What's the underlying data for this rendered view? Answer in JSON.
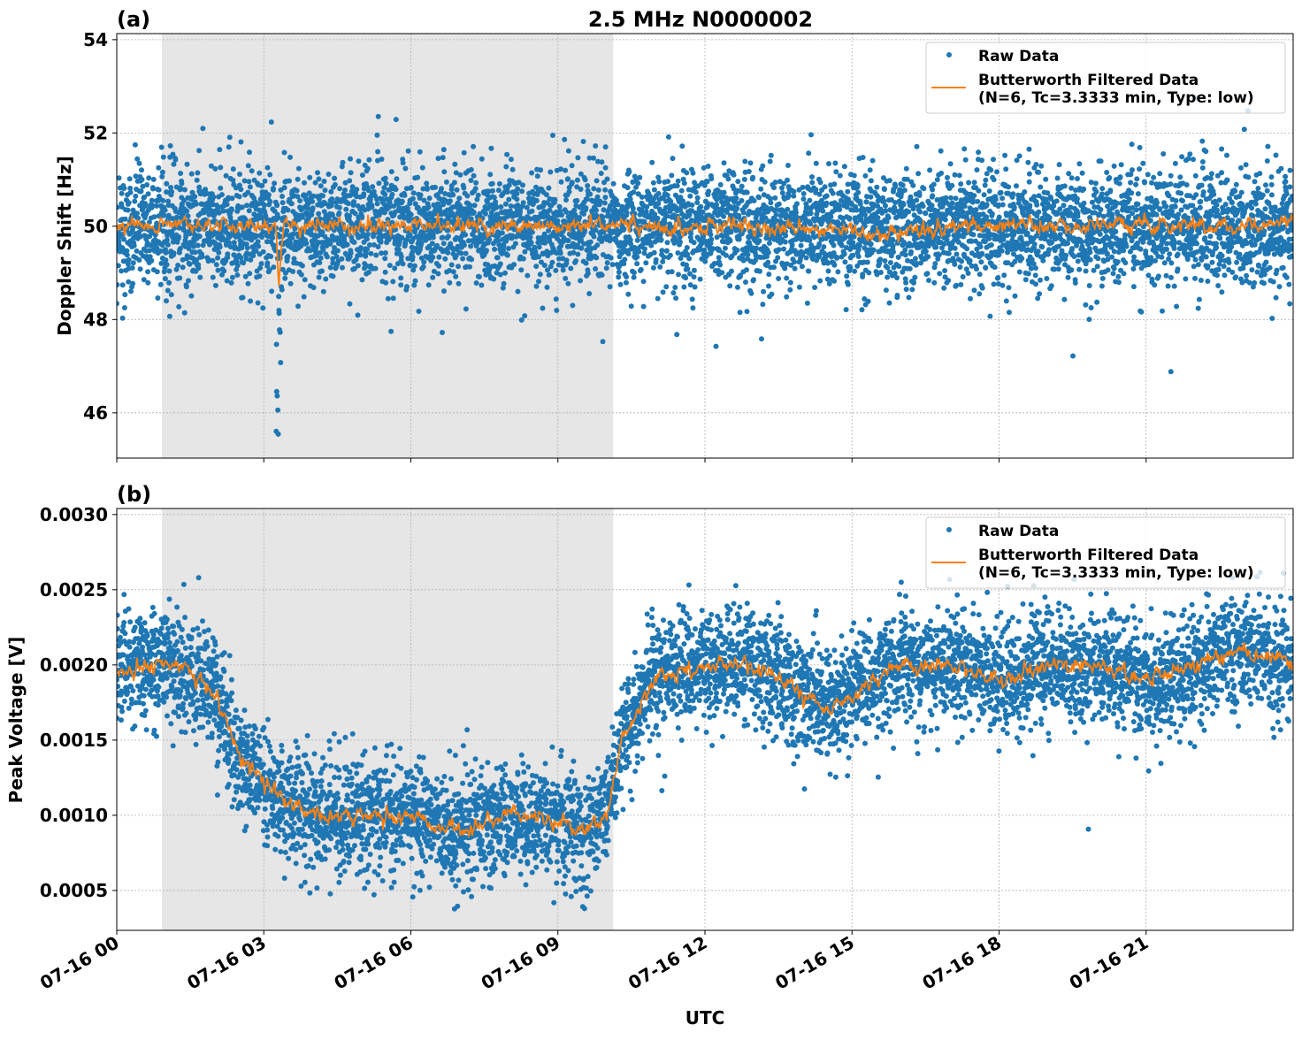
{
  "chart_data": [
    {
      "type": "scatter",
      "panel_label": "(a)",
      "title": "2.5 MHz N0000002",
      "xlabel": "",
      "ylabel": "Doppler Shift [Hz]",
      "xlim_hours": [
        0,
        24
      ],
      "ylim": [
        45.03,
        54.13
      ],
      "yticks": [
        46,
        48,
        50,
        52,
        54
      ],
      "ytick_labels": [
        "46",
        "48",
        "50",
        "52",
        "54"
      ],
      "grid": true,
      "legend_position": "top-right",
      "shaded_region_hours": [
        0.92,
        10.13
      ],
      "series": [
        {
          "name": "Raw Data",
          "kind": "scatter",
          "color": "#1f77b4",
          "center": 50.0,
          "spread": 0.6
        },
        {
          "name": "Butterworth Filtered Data\n(N=6, Tc=3.3333 min, Type: low)",
          "kind": "line",
          "color": "#ff7f0e",
          "x": [
            0,
            1,
            2,
            3,
            3.25,
            3.3,
            3.4,
            4,
            5,
            6,
            7,
            8,
            9,
            10,
            11,
            12,
            13,
            14,
            15,
            15.5,
            16,
            17,
            18,
            19,
            20,
            21,
            22,
            23,
            24
          ],
          "y": [
            50.0,
            50.05,
            50.0,
            50.0,
            50.0,
            48.6,
            50.0,
            50.05,
            50.0,
            50.0,
            50.0,
            50.0,
            50.0,
            50.0,
            50.0,
            50.0,
            50.0,
            49.95,
            49.9,
            49.85,
            49.9,
            49.95,
            50.0,
            50.0,
            50.0,
            50.0,
            50.0,
            50.0,
            50.1
          ]
        }
      ]
    },
    {
      "type": "scatter",
      "panel_label": "(b)",
      "title": "",
      "xlabel": "UTC",
      "ylabel": "Peak Voltage [V]",
      "xlim_hours": [
        0,
        24
      ],
      "ylim": [
        0.000235,
        0.00304
      ],
      "yticks": [
        0.0005,
        0.001,
        0.0015,
        0.002,
        0.0025,
        0.003
      ],
      "ytick_labels": [
        "0.0005",
        "0.0010",
        "0.0015",
        "0.0020",
        "0.0025",
        "0.0030"
      ],
      "xticks_hours": [
        0,
        3,
        6,
        9,
        12,
        15,
        18,
        21
      ],
      "xtick_labels": [
        "07-16 00",
        "07-16 03",
        "07-16 06",
        "07-16 09",
        "07-16 12",
        "07-16 15",
        "07-16 18",
        "07-16 21"
      ],
      "grid": true,
      "legend_position": "top-right",
      "shaded_region_hours": [
        0.92,
        10.13
      ],
      "series": [
        {
          "name": "Raw Data",
          "kind": "scatter",
          "color": "#1f77b4",
          "spread": 0.00018
        },
        {
          "name": "Butterworth Filtered Data\n(N=6, Tc=3.3333 min, Type: low)",
          "kind": "line",
          "color": "#ff7f0e",
          "x": [
            0,
            0.5,
            1,
            1.5,
            2,
            2.5,
            3,
            3.5,
            4,
            5,
            6,
            7,
            8,
            9,
            9.5,
            10,
            10.3,
            10.8,
            11,
            12,
            13,
            14,
            14.5,
            15,
            15.5,
            16,
            17,
            18,
            19,
            20,
            21,
            22,
            23,
            24
          ],
          "y": [
            0.00195,
            0.002,
            0.002,
            0.00195,
            0.0018,
            0.0014,
            0.0012,
            0.0011,
            0.001,
            0.001,
            0.001,
            0.0009,
            0.001,
            0.00095,
            0.0009,
            0.001,
            0.0015,
            0.0018,
            0.0019,
            0.002,
            0.002,
            0.0018,
            0.0017,
            0.0018,
            0.0019,
            0.002,
            0.002,
            0.0019,
            0.002,
            0.002,
            0.0019,
            0.002,
            0.0021,
            0.002
          ]
        }
      ]
    }
  ]
}
